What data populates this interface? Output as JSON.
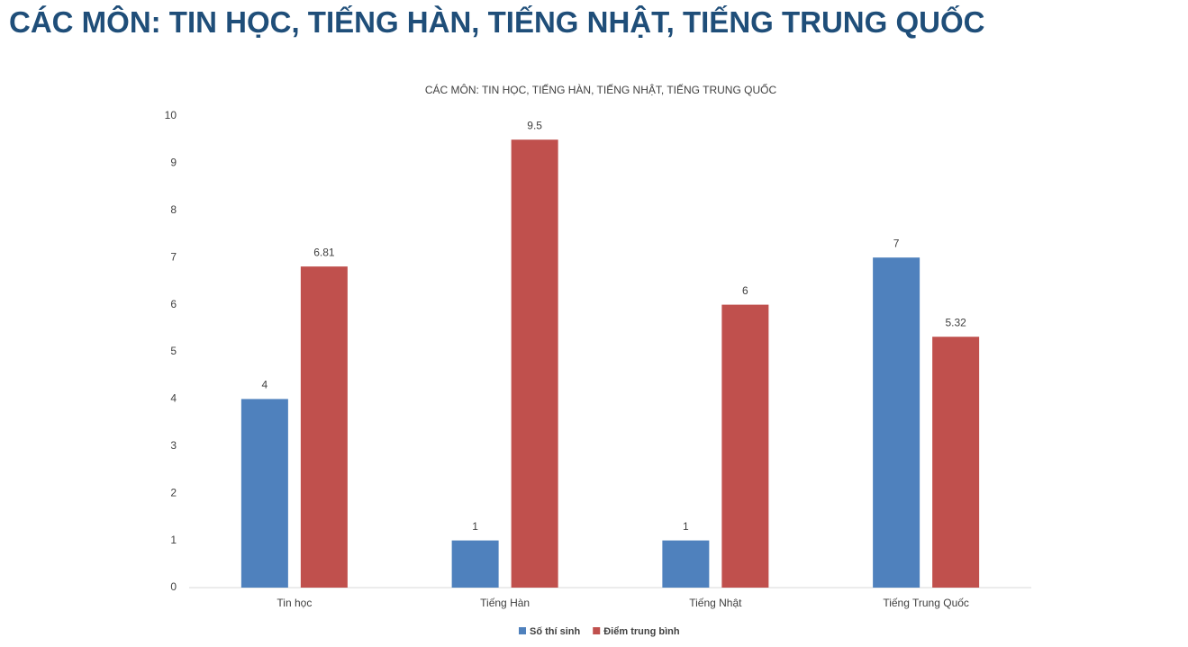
{
  "heading": "CÁC MÔN: TIN HỌC, TIẾNG HÀN, TIẾNG NHẬT, TIẾNG TRUNG QUỐC",
  "chart_data": {
    "type": "bar",
    "title": "CÁC MÔN: TIN HỌC, TIẾNG HÀN, TIẾNG NHẬT, TIẾNG TRUNG QUỐC",
    "categories": [
      "Tin học",
      "Tiếng Hàn",
      "Tiếng Nhật",
      "Tiếng Trung Quốc"
    ],
    "series": [
      {
        "name": "Số thí sinh",
        "color": "#4f81bd",
        "values": [
          4,
          1,
          1,
          7
        ]
      },
      {
        "name": "Điểm trung bình",
        "color": "#c0504d",
        "values": [
          6.81,
          9.5,
          6,
          5.32
        ]
      }
    ],
    "ylim": [
      0,
      10
    ],
    "yticks": [
      0,
      1,
      2,
      3,
      4,
      5,
      6,
      7,
      8,
      9,
      10
    ],
    "grid": false,
    "legend": "bottom"
  }
}
